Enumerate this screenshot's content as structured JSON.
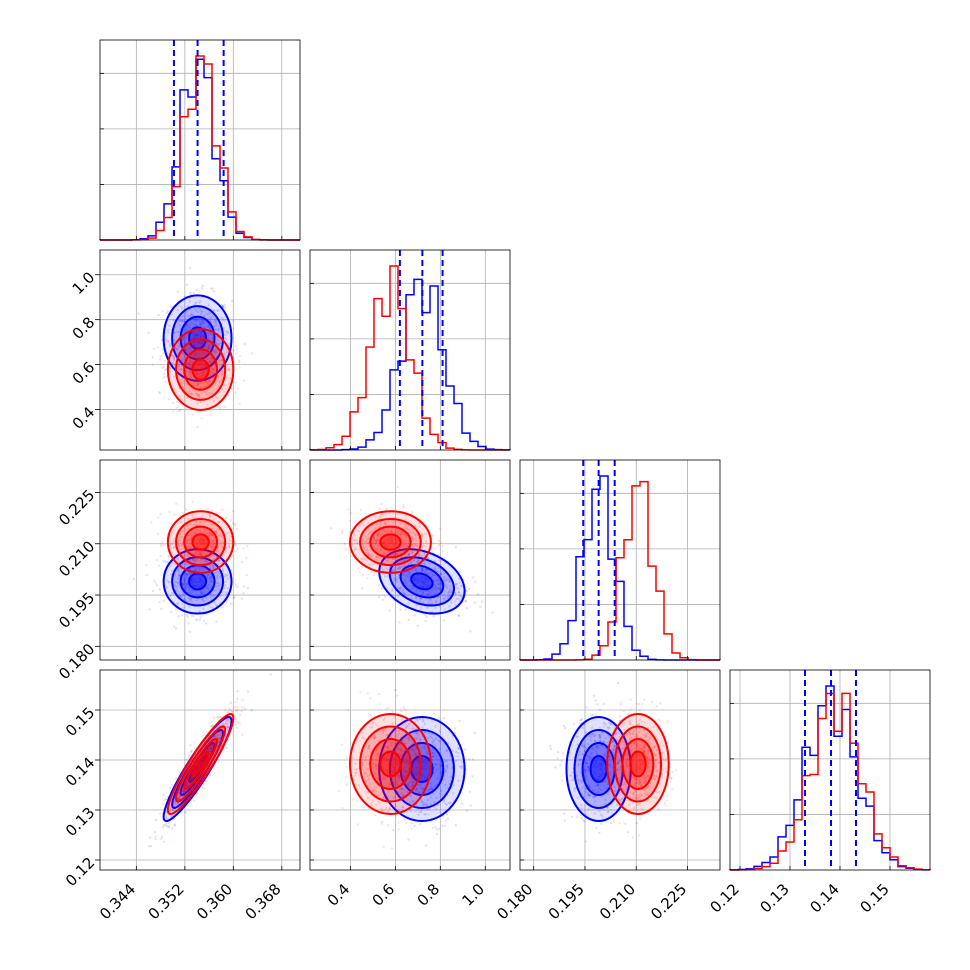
{
  "chart_data": {
    "type": "corner",
    "parameters": [
      {
        "range": [
          0.338,
          0.371
        ],
        "ticks": [
          0.344,
          0.352,
          0.36,
          0.368
        ],
        "tick_labels": [
          "0.344",
          "0.352",
          "0.360",
          "0.368"
        ],
        "quantiles": [
          0.3502,
          0.3541,
          0.3584
        ]
      },
      {
        "range": [
          0.22,
          1.11
        ],
        "ticks": [
          0.4,
          0.6,
          0.8,
          1.0
        ],
        "tick_labels": [
          "0.4",
          "0.6",
          "0.8",
          "1.0"
        ],
        "quantiles": [
          0.62,
          0.72,
          0.81
        ]
      },
      {
        "range": [
          0.176,
          0.2345
        ],
        "ticks": [
          0.18,
          0.195,
          0.21,
          0.225
        ],
        "tick_labels": [
          "0.180",
          "0.195",
          "0.210",
          "0.225"
        ],
        "quantiles": [
          0.1945,
          0.199,
          0.2037
        ]
      },
      {
        "range": [
          0.118,
          0.158
        ],
        "ticks": [
          0.12,
          0.13,
          0.14,
          0.15
        ],
        "tick_labels": [
          "0.12",
          "0.13",
          "0.14",
          "0.15"
        ],
        "quantiles": [
          0.133,
          0.1382,
          0.1432
        ]
      }
    ],
    "series": [
      {
        "name": "",
        "color": "#0000ff",
        "means": [
          0.3541,
          0.718,
          0.199,
          0.1382
        ],
        "sigmas": [
          0.0028,
          0.095,
          0.0047,
          0.0052
        ],
        "correlations": [
          [
            1,
            0.0,
            0.0,
            0.92
          ],
          [
            0.0,
            1,
            -0.3,
            0.0
          ],
          [
            0.0,
            -0.3,
            1,
            0.0
          ],
          [
            0.92,
            0.0,
            0.0,
            1
          ]
        ]
      },
      {
        "name": "",
        "color": "#ff0000",
        "means": [
          0.3546,
          0.578,
          0.2105,
          0.1392
        ],
        "sigmas": [
          0.0027,
          0.09,
          0.0045,
          0.005
        ],
        "correlations": [
          [
            1,
            0.0,
            0.0,
            0.92
          ],
          [
            0.0,
            1,
            0.0,
            0.0
          ],
          [
            0.0,
            0.0,
            1,
            0.0
          ],
          [
            0.92,
            0.0,
            0.0,
            1
          ]
        ]
      }
    ],
    "quantile_color": "#0000ff",
    "contour_levels_sigma": [
      0.5,
      1.0,
      1.5,
      2.0
    ],
    "grid": true,
    "legend": "none"
  }
}
